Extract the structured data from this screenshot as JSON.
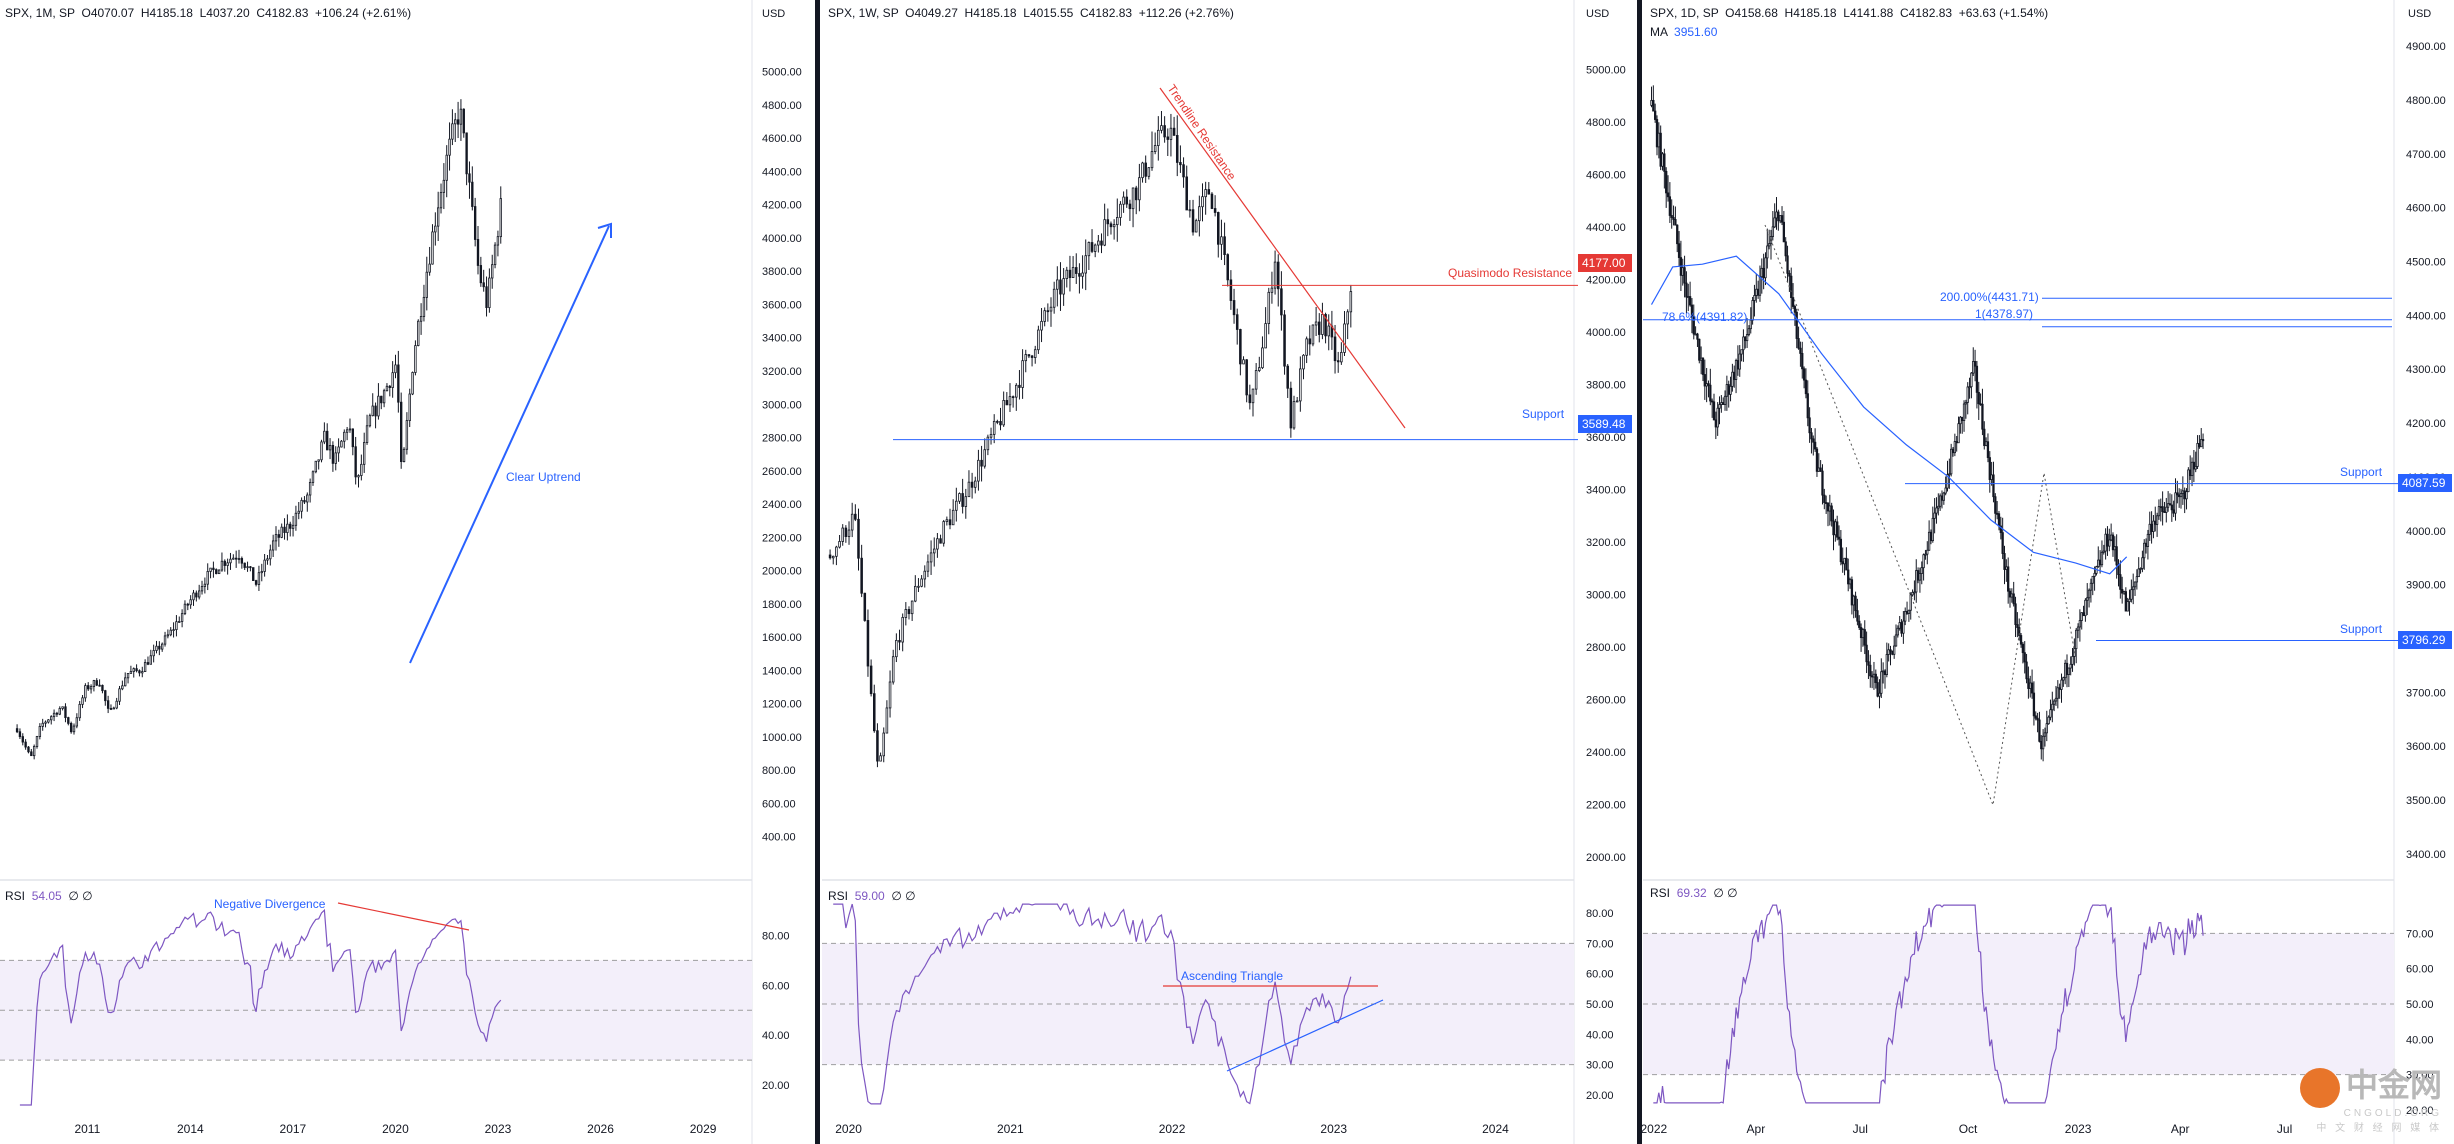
{
  "panes": [
    {
      "id": "monthly",
      "header": {
        "symbol": "SPX, 1M, SP",
        "open": "O4070.07",
        "high": "H4185.18",
        "low": "L4037.20",
        "close": "C4182.83",
        "change": "+106.24 (+2.61%)"
      },
      "price_axis_unit": "USD",
      "rsi_header": {
        "label": "RSI",
        "value": "54.05",
        "extra": "∅ ∅"
      },
      "annotations": {
        "uptrend": "Clear Uptrend",
        "divergence": "Negative Divergence"
      }
    },
    {
      "id": "weekly",
      "header": {
        "symbol": "SPX, 1W, SP",
        "open": "O4049.27",
        "high": "H4185.18",
        "low": "L4015.55",
        "close": "C4182.83",
        "change": "+112.26 (+2.76%)"
      },
      "price_axis_unit": "USD",
      "rsi_header": {
        "label": "RSI",
        "value": "59.00",
        "extra": "∅ ∅"
      },
      "annotations": {
        "trendline": "Trendline Resistance",
        "qm": "Quasimodo Resistance",
        "support": "Support",
        "triangle": "Ascending Triangle"
      },
      "price_labels": {
        "qm": "4177.00",
        "support": "3589.48"
      }
    },
    {
      "id": "daily",
      "header": {
        "symbol": "SPX, 1D, SP",
        "open": "O4158.68",
        "high": "H4185.18",
        "low": "L4141.88",
        "close": "C4182.83",
        "change": "+63.63 (+1.54%)"
      },
      "ma_header": {
        "label": "MA",
        "value": "3951.60"
      },
      "price_axis_unit": "USD",
      "rsi_header": {
        "label": "RSI",
        "value": "69.32",
        "extra": "∅ ∅"
      },
      "annotations": {
        "support1": "Support",
        "support2": "Support",
        "fib200": "200.00%(4431.71)",
        "fib1": "1(4378.97)",
        "fib786": "78.6%(4391.82)"
      },
      "price_labels": {
        "support1": "4087.59",
        "support2": "3796.29"
      }
    }
  ],
  "watermark": {
    "text": "中金网",
    "sub": "CNGOLD.ORG",
    "cn_sub": "中 文 财 经 网 媒 体"
  },
  "colors": {
    "up": "#131722",
    "down": "#131722",
    "blue": "#2962ff",
    "red": "#e53935",
    "rsi_line": "#7e57c2",
    "rsi_band": "#f3effa"
  },
  "chart_data": [
    {
      "type": "candlestick",
      "title": "SPX, 1M, SP",
      "ylabel": "USD",
      "y_ticks": [
        400,
        600,
        800,
        1000,
        1200,
        1400,
        1600,
        1800,
        2000,
        2200,
        2400,
        2600,
        2800,
        3000,
        3200,
        3400,
        3600,
        3800,
        4000,
        4200,
        4400,
        4600,
        4800,
        5000
      ],
      "ylim": [
        200,
        5250
      ],
      "x_ticks": [
        "2011",
        "2014",
        "2017",
        "2020",
        "2023",
        "2026",
        "2029"
      ],
      "series_close_path": [
        [
          2009.0,
          1050
        ],
        [
          2009.4,
          870
        ],
        [
          2009.7,
          1070
        ],
        [
          2010.3,
          1180
        ],
        [
          2010.6,
          1030
        ],
        [
          2011.0,
          1290
        ],
        [
          2011.4,
          1340
        ],
        [
          2011.7,
          1130
        ],
        [
          2012.2,
          1380
        ],
        [
          2012.6,
          1400
        ],
        [
          2013.0,
          1500
        ],
        [
          2013.5,
          1630
        ],
        [
          2014.0,
          1800
        ],
        [
          2014.5,
          1950
        ],
        [
          2015.0,
          2050
        ],
        [
          2015.5,
          2100
        ],
        [
          2016.0,
          1920
        ],
        [
          2016.5,
          2170
        ],
        [
          2017.0,
          2280
        ],
        [
          2017.5,
          2450
        ],
        [
          2018.0,
          2800
        ],
        [
          2018.3,
          2650
        ],
        [
          2018.7,
          2900
        ],
        [
          2018.95,
          2500
        ],
        [
          2019.3,
          2900
        ],
        [
          2019.8,
          3100
        ],
        [
          2020.1,
          3250
        ],
        [
          2020.25,
          2550
        ],
        [
          2020.6,
          3300
        ],
        [
          2020.9,
          3700
        ],
        [
          2021.3,
          4200
        ],
        [
          2021.6,
          4500
        ],
        [
          2021.95,
          4780
        ],
        [
          2022.2,
          4350
        ],
        [
          2022.5,
          3800
        ],
        [
          2022.75,
          3600
        ],
        [
          2022.95,
          3900
        ],
        [
          2023.15,
          4180
        ]
      ],
      "rsi": {
        "ylim": [
          10,
          95
        ],
        "y_ticks": [
          20,
          40,
          60,
          80
        ],
        "upper": 70,
        "mid": 50,
        "lower": 30,
        "last": 54.05
      }
    },
    {
      "type": "candlestick",
      "title": "SPX, 1W, SP",
      "ylabel": "USD",
      "y_ticks": [
        2000,
        2200,
        2400,
        2600,
        2800,
        3000,
        3200,
        3400,
        3600,
        3800,
        4000,
        4200,
        4400,
        4600,
        4800,
        5000
      ],
      "ylim": [
        1950,
        5150
      ],
      "x_ticks": [
        "2020",
        "2021",
        "2022",
        "2023",
        "2024"
      ],
      "series_close_path": [
        [
          2019.9,
          3150
        ],
        [
          2020.05,
          3300
        ],
        [
          2020.2,
          2300
        ],
        [
          2020.3,
          2800
        ],
        [
          2020.45,
          3050
        ],
        [
          2020.6,
          3250
        ],
        [
          2020.75,
          3400
        ],
        [
          2020.9,
          3600
        ],
        [
          2021.05,
          3800
        ],
        [
          2021.3,
          4150
        ],
        [
          2021.5,
          4300
        ],
        [
          2021.65,
          4450
        ],
        [
          2021.8,
          4550
        ],
        [
          2021.9,
          4700
        ],
        [
          2022.0,
          4780
        ],
        [
          2022.15,
          4400
        ],
        [
          2022.25,
          4550
        ],
        [
          2022.4,
          4050
        ],
        [
          2022.5,
          3700
        ],
        [
          2022.6,
          4050
        ],
        [
          2022.65,
          4300
        ],
        [
          2022.75,
          3650
        ],
        [
          2022.85,
          3950
        ],
        [
          2022.95,
          4050
        ],
        [
          2023.05,
          3850
        ],
        [
          2023.12,
          4180
        ]
      ],
      "levels": {
        "quasimodo_resistance": 4177.0,
        "support": 3589.48
      },
      "rsi": {
        "ylim": [
          15,
          85
        ],
        "y_ticks": [
          20,
          30,
          40,
          50,
          60,
          70,
          80
        ],
        "upper": 70,
        "mid": 50,
        "lower": 30,
        "last": 59.0
      }
    },
    {
      "type": "candlestick",
      "title": "SPX, 1D, SP",
      "ylabel": "USD",
      "y_ticks": [
        3400,
        3500,
        3600,
        3700,
        3800,
        3900,
        4000,
        4100,
        4200,
        4300,
        4400,
        4500,
        4600,
        4700,
        4800,
        4900
      ],
      "ylim": [
        3370,
        4930
      ],
      "x_ticks": [
        "2022",
        "Apr",
        "Jul",
        "Oct",
        "2023",
        "Apr",
        "Jul"
      ],
      "series_close_path": [
        [
          2022.0,
          4790
        ],
        [
          2022.08,
          4450
        ],
        [
          2022.15,
          4200
        ],
        [
          2022.22,
          4350
        ],
        [
          2022.3,
          4600
        ],
        [
          2022.38,
          4150
        ],
        [
          2022.45,
          3950
        ],
        [
          2022.53,
          3700
        ],
        [
          2022.6,
          3850
        ],
        [
          2022.68,
          4050
        ],
        [
          2022.76,
          4300
        ],
        [
          2022.84,
          3900
        ],
        [
          2022.92,
          3600
        ],
        [
          2023.0,
          3800
        ],
        [
          2023.08,
          4000
        ],
        [
          2023.12,
          3850
        ],
        [
          2023.18,
          4020
        ],
        [
          2023.25,
          4060
        ],
        [
          2023.3,
          4180
        ]
      ],
      "ma": {
        "label": "MA",
        "last": 3951.6
      },
      "levels": {
        "support_1": 4087.59,
        "support_2": 3796.29,
        "fib_200": 4431.71,
        "fib_1": 4378.97,
        "fib_786": 4391.82
      },
      "rsi": {
        "ylim": [
          20,
          80
        ],
        "y_ticks": [
          20,
          30,
          40,
          50,
          60,
          70
        ],
        "upper": 70,
        "mid": 50,
        "lower": 30,
        "last": 69.32
      }
    }
  ]
}
